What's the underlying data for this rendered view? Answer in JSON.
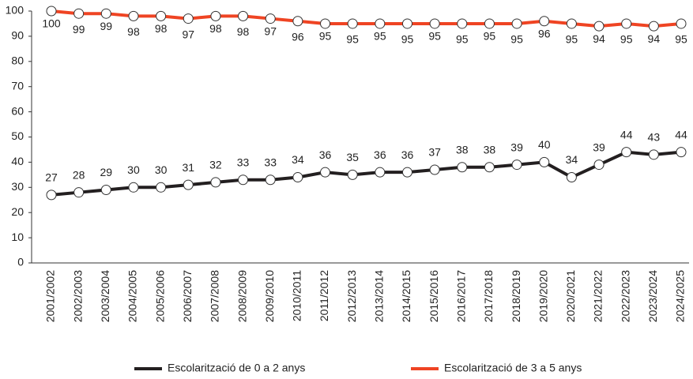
{
  "chart_data": {
    "type": "line",
    "categories": [
      "2001/2002",
      "2002/2003",
      "2003/2004",
      "2004/2005",
      "2005/2006",
      "2006/2007",
      "2007/2008",
      "2008/2009",
      "2009/2010",
      "2010/2011",
      "2011/2012",
      "2012/2013",
      "2013/2014",
      "2014/2015",
      "2015/2016",
      "2016/2017",
      "2017/2018",
      "2018/2019",
      "2019/2020",
      "2020/2021",
      "2021/2022",
      "2022/2023",
      "2023/2024",
      "2024/2025"
    ],
    "series": [
      {
        "name": "Escolarització de 0 a 2 anys",
        "color": "#231f20",
        "values": [
          27,
          28,
          29,
          30,
          30,
          31,
          32,
          33,
          33,
          34,
          36,
          35,
          36,
          36,
          37,
          38,
          38,
          39,
          40,
          34,
          39,
          44,
          43,
          44
        ]
      },
      {
        "name": "Escolarització de 3 a 5 anys",
        "color": "#ef4423",
        "values": [
          100,
          99,
          99,
          98,
          98,
          97,
          98,
          98,
          97,
          96,
          95,
          95,
          95,
          95,
          95,
          95,
          95,
          95,
          96,
          95,
          94,
          95,
          94,
          95
        ]
      }
    ],
    "ylim": [
      0,
      100
    ],
    "yticks": [
      0,
      10,
      20,
      30,
      40,
      50,
      60,
      70,
      80,
      90,
      100
    ],
    "grid": false,
    "legend": "bottom"
  }
}
